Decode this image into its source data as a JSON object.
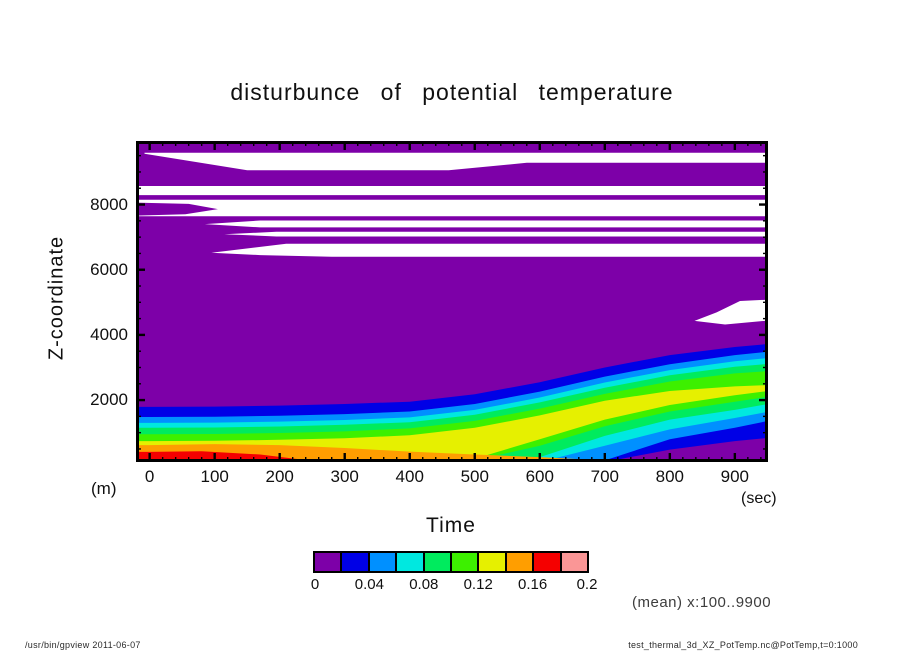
{
  "title": "disturbunce of potential temperature",
  "annotation": "(mean) x:100..9900",
  "footer": {
    "left": "/usr/bin/gpview   2011-06-07",
    "right": "test_thermal_3d_XZ_PotTemp.nc@PotTemp,t=0:1000"
  },
  "chart_data": {
    "type": "heatmap",
    "subtype": "filled-contour",
    "title": "disturbunce of potential temperature",
    "xlabel": "Time",
    "x_units": "(sec)",
    "ylabel": "Z-coordinate",
    "y_units": "(m)",
    "xlim": [
      -21,
      951
    ],
    "ylim": [
      100,
      9950
    ],
    "x_ticks_major": [
      0,
      100,
      200,
      300,
      400,
      500,
      600,
      700,
      800,
      900
    ],
    "x_tick_minor_step": 20,
    "y_ticks_major": [
      2000,
      4000,
      6000,
      8000
    ],
    "y_tick_minor_step": 500,
    "grid": false,
    "legend_position": "bottom-colorbar",
    "field_color": "#7D00A8",
    "white_color": "#FFFFFF",
    "colorbar": {
      "labels": [
        "0",
        "0.04",
        "0.08",
        "0.12",
        "0.16",
        "0.2"
      ],
      "levels": [
        0,
        0.02,
        0.04,
        0.06,
        0.08,
        0.1,
        0.12,
        0.14,
        0.16,
        0.18,
        0.2
      ],
      "colors": [
        "#7D00A8",
        "#0000E6",
        "#0090FF",
        "#00E8E0",
        "#00EB5E",
        "#3DF000",
        "#E6F000",
        "#FF9E00",
        "#F50000",
        "#FA9696"
      ]
    },
    "plume": {
      "comment": "rising warm band; t in sec, z boundaries in m for each contour level (value >= level)",
      "t": [
        -21,
        0,
        100,
        200,
        300,
        400,
        500,
        600,
        700,
        800,
        900,
        951
      ],
      "bands": [
        {
          "level_ge": 0.02,
          "color": "#0000E6",
          "upper": [
            1790,
            1790,
            1800,
            1830,
            1880,
            1950,
            2180,
            2550,
            3000,
            3380,
            3630,
            3720
          ],
          "lower": [
            100,
            100,
            100,
            100,
            100,
            100,
            100,
            100,
            100,
            480,
            740,
            840
          ]
        },
        {
          "level_ge": 0.04,
          "color": "#0090FF",
          "upper": [
            1480,
            1480,
            1490,
            1520,
            1570,
            1650,
            1880,
            2260,
            2720,
            3100,
            3380,
            3480
          ],
          "lower": [
            100,
            100,
            100,
            100,
            100,
            100,
            100,
            100,
            150,
            800,
            1150,
            1360
          ]
        },
        {
          "level_ge": 0.06,
          "color": "#00E8E0",
          "upper": [
            1300,
            1300,
            1310,
            1340,
            1390,
            1470,
            1700,
            2080,
            2540,
            2920,
            3190,
            3290
          ],
          "lower": [
            100,
            100,
            100,
            100,
            100,
            100,
            100,
            100,
            600,
            1100,
            1450,
            1640
          ]
        },
        {
          "level_ge": 0.08,
          "color": "#00EB5E",
          "upper": [
            1150,
            1150,
            1160,
            1190,
            1240,
            1320,
            1550,
            1930,
            2380,
            2760,
            3020,
            3110
          ],
          "lower": [
            100,
            100,
            100,
            100,
            100,
            100,
            100,
            250,
            900,
            1400,
            1700,
            1880
          ]
        },
        {
          "level_ge": 0.1,
          "color": "#3DF000",
          "upper": [
            950,
            950,
            960,
            990,
            1040,
            1130,
            1360,
            1740,
            2190,
            2570,
            2820,
            2890
          ],
          "lower": [
            100,
            100,
            100,
            100,
            100,
            100,
            150,
            600,
            1200,
            1650,
            1950,
            2100
          ]
        },
        {
          "level_ge": 0.12,
          "color": "#E6F000",
          "upper": [
            740,
            740,
            750,
            780,
            830,
            920,
            1150,
            1530,
            1980,
            2280,
            2420,
            2460
          ],
          "lower": [
            100,
            100,
            100,
            100,
            100,
            100,
            200,
            800,
            1400,
            1850,
            2150,
            2280
          ]
        }
      ],
      "wedges": [
        {
          "level_ge": 0.14,
          "color": "#FF9E00",
          "t": [
            -21,
            0,
            100,
            200,
            300,
            400,
            500,
            600,
            660
          ],
          "upper": [
            620,
            620,
            650,
            620,
            530,
            420,
            330,
            250,
            190
          ],
          "lower": [
            100,
            100,
            100,
            100,
            100,
            100,
            110,
            140,
            180
          ]
        },
        {
          "level_ge": 0.16,
          "color": "#F50000",
          "t": [
            -21,
            0,
            80,
            170,
            255
          ],
          "upper": [
            410,
            410,
            430,
            330,
            120
          ],
          "lower": [
            100,
            100,
            100,
            100,
            100
          ]
        }
      ]
    },
    "white_regions": [
      {
        "name": "stripe-9300",
        "points": [
          [
            -8,
            9590
          ],
          [
            951,
            9590
          ],
          [
            951,
            9280
          ],
          [
            580,
            9280
          ],
          [
            460,
            9050
          ],
          [
            150,
            9050
          ],
          [
            -8,
            9560
          ]
        ]
      },
      {
        "name": "stripe-8400",
        "points": [
          [
            -21,
            8570
          ],
          [
            951,
            8570
          ],
          [
            951,
            8290
          ],
          [
            -21,
            8290
          ]
        ]
      },
      {
        "name": "stripe-7900",
        "points": [
          [
            -21,
            8150
          ],
          [
            951,
            8150
          ],
          [
            951,
            7640
          ],
          [
            -21,
            7640
          ]
        ]
      },
      {
        "name": "stripe-7400",
        "points": [
          [
            85,
            7400
          ],
          [
            170,
            7510
          ],
          [
            951,
            7510
          ],
          [
            951,
            7300
          ],
          [
            170,
            7300
          ]
        ]
      },
      {
        "name": "stripe-7090",
        "points": [
          [
            115,
            7090
          ],
          [
            195,
            7165
          ],
          [
            951,
            7165
          ],
          [
            951,
            7020
          ],
          [
            195,
            7020
          ]
        ]
      },
      {
        "name": "stripe-6600",
        "points": [
          [
            95,
            6520
          ],
          [
            210,
            6800
          ],
          [
            951,
            6800
          ],
          [
            951,
            6400
          ],
          [
            280,
            6400
          ],
          [
            170,
            6450
          ]
        ]
      },
      {
        "name": "wedge-right-4700",
        "points": [
          [
            838,
            4430
          ],
          [
            872,
            4690
          ],
          [
            908,
            5040
          ],
          [
            951,
            5080
          ],
          [
            951,
            4440
          ],
          [
            885,
            4320
          ]
        ]
      }
    ],
    "purple_patches": [
      {
        "name": "left-blob-7900",
        "points": [
          [
            -21,
            8060
          ],
          [
            60,
            8020
          ],
          [
            105,
            7860
          ],
          [
            55,
            7700
          ],
          [
            -21,
            7660
          ]
        ]
      }
    ]
  }
}
